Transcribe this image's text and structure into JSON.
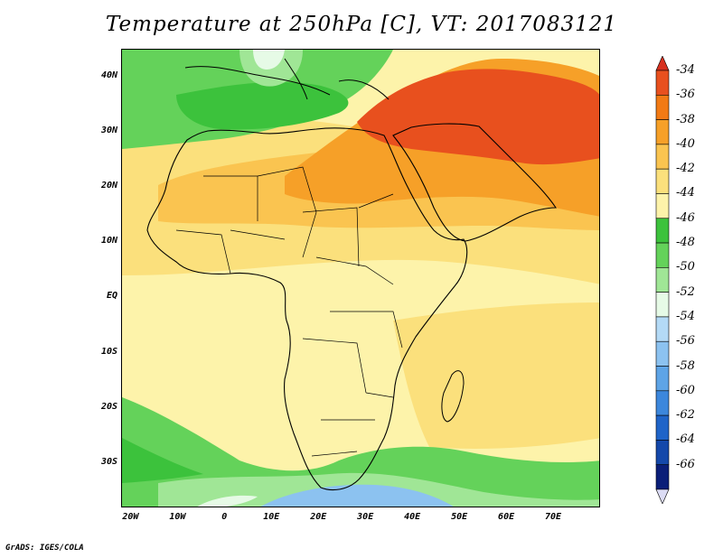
{
  "title": "Temperature at 250hPa [C], VT: 2017083121",
  "credit": "GrADS: IGES/COLA",
  "map": {
    "lon_range": [
      -22,
      80
    ],
    "lat_range": [
      -38,
      45
    ],
    "lat_ticks": [
      {
        "value": 40,
        "label": "40N"
      },
      {
        "value": 30,
        "label": "30N"
      },
      {
        "value": 20,
        "label": "20N"
      },
      {
        "value": 10,
        "label": "10N"
      },
      {
        "value": 0,
        "label": "EQ"
      },
      {
        "value": -10,
        "label": "10S"
      },
      {
        "value": -20,
        "label": "20S"
      },
      {
        "value": -30,
        "label": "30S"
      }
    ],
    "lon_ticks": [
      {
        "value": -20,
        "label": "20W"
      },
      {
        "value": -10,
        "label": "10W"
      },
      {
        "value": 0,
        "label": "0"
      },
      {
        "value": 10,
        "label": "10E"
      },
      {
        "value": 20,
        "label": "20E"
      },
      {
        "value": 30,
        "label": "30E"
      },
      {
        "value": 40,
        "label": "40E"
      },
      {
        "value": 50,
        "label": "50E"
      },
      {
        "value": 60,
        "label": "60E"
      },
      {
        "value": 70,
        "label": "70E"
      }
    ]
  },
  "colorbar": {
    "labels": [
      "-34",
      "-36",
      "-38",
      "-40",
      "-42",
      "-44",
      "-46",
      "-48",
      "-50",
      "-52",
      "-54",
      "-56",
      "-58",
      "-60",
      "-62",
      "-64",
      "-66"
    ],
    "colors": [
      "#e8501e",
      "#f27a14",
      "#f6a028",
      "#fac450",
      "#fbe07c",
      "#fdf3aa",
      "#3cc23c",
      "#64d25a",
      "#a0e696",
      "#e6fae6",
      "#b4daf6",
      "#8cc2f0",
      "#5ea4e6",
      "#3c87dc",
      "#1f64c8",
      "#1448aa",
      "#0a1e78"
    ],
    "top_color": "#d7301f",
    "bottom_color": "#dcdcf5"
  },
  "colors": {
    "warm_core": "#e8501e",
    "orange": "#f6a028",
    "light_orange": "#fac450",
    "yellow": "#fbe07c",
    "pale_yellow": "#fdf3aa",
    "green": "#3cc23c",
    "light_green": "#64d25a",
    "pale_green": "#a0e696",
    "pale_blue": "#e6fae6",
    "blue": "#8cc2f0"
  }
}
